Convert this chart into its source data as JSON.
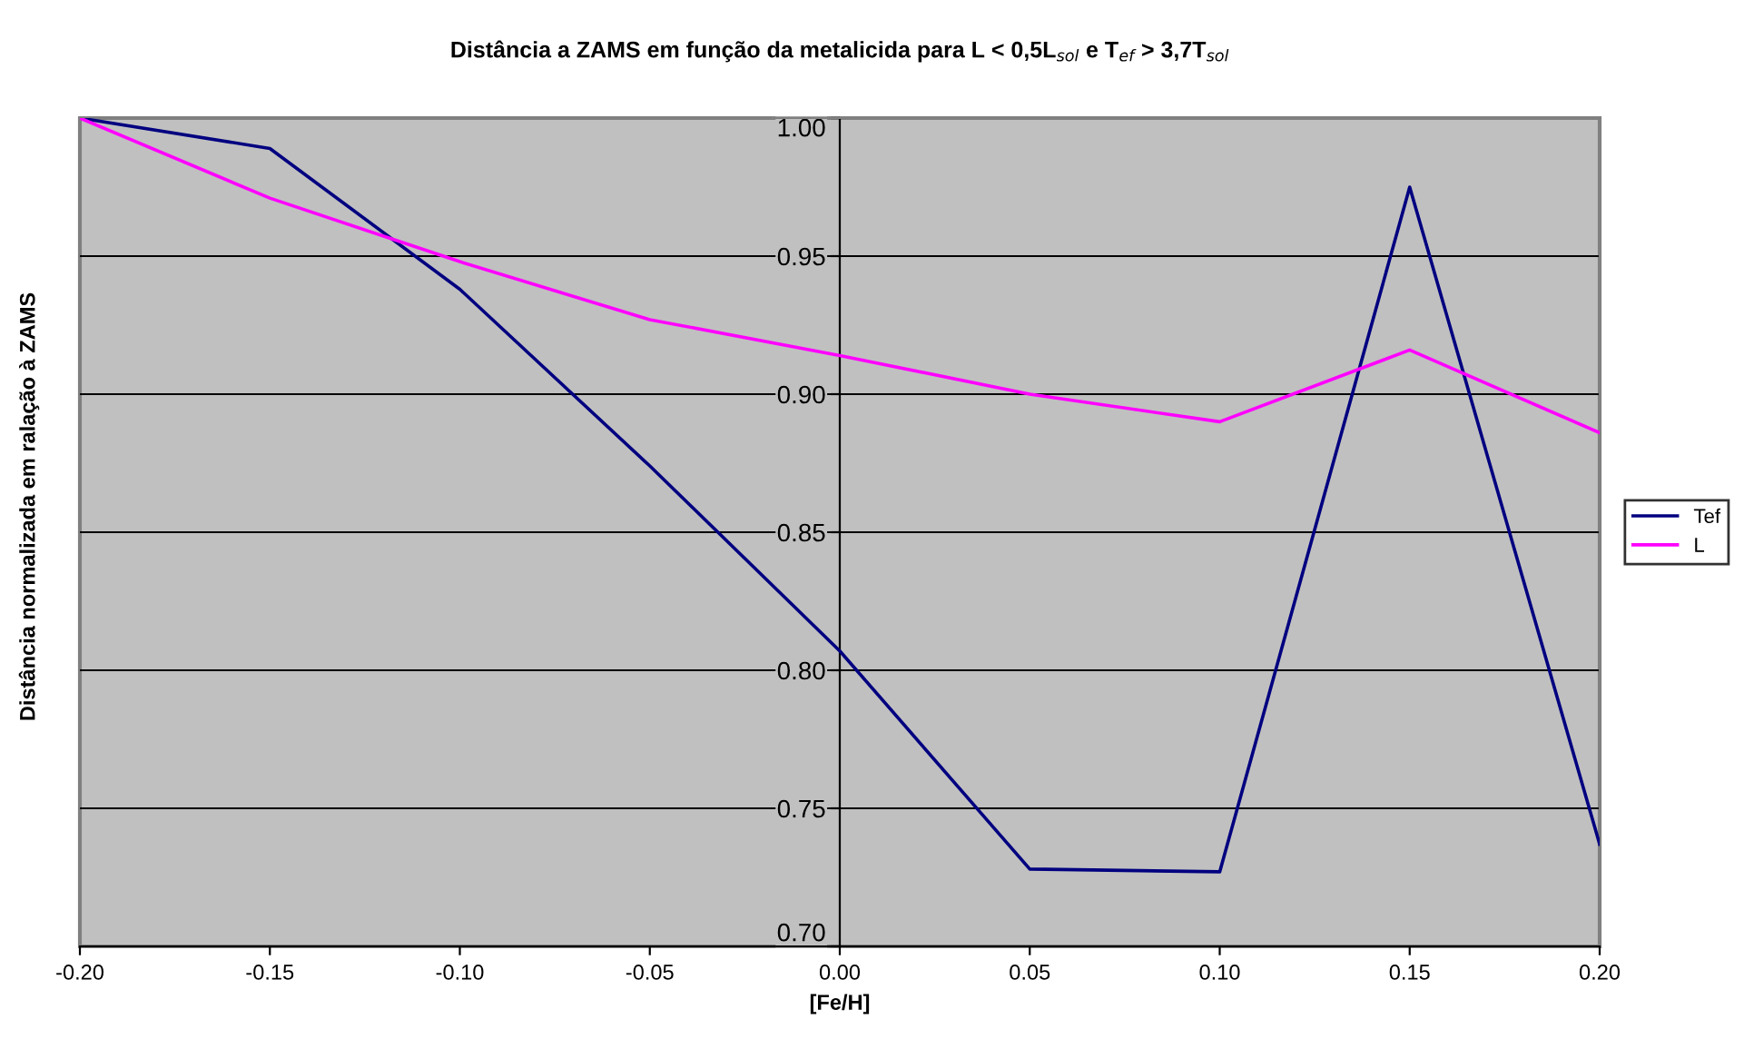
{
  "chart_data": {
    "type": "line",
    "title": "Distância a ZAMS em função da metalicida para L < 0,5L$_{sol}$ e T$_{ef}$ > 3,7T$_{sol}$",
    "xlabel": "[Fe/H]",
    "ylabel": "Distância normalizada em ralação à ZAMS",
    "x": [
      -0.2,
      -0.15,
      -0.1,
      -0.05,
      0.0,
      0.05,
      0.1,
      0.15,
      0.2
    ],
    "series": [
      {
        "name": "Tef",
        "color": "#000080",
        "values": [
          1.0,
          0.989,
          0.938,
          0.874,
          0.807,
          0.728,
          0.727,
          0.975,
          0.737
        ]
      },
      {
        "name": "L",
        "color": "#ff00ff",
        "values": [
          1.0,
          0.971,
          0.948,
          0.927,
          0.914,
          0.9,
          0.89,
          0.916,
          0.886
        ]
      }
    ],
    "xlim": [
      -0.2,
      0.2
    ],
    "ylim": [
      0.7,
      1.0
    ],
    "xticks": [
      {
        "value": -0.2,
        "label": "-0.20"
      },
      {
        "value": -0.15,
        "label": "-0.15"
      },
      {
        "value": -0.1,
        "label": "-0.10"
      },
      {
        "value": -0.05,
        "label": "-0.05"
      },
      {
        "value": 0.0,
        "label": "0.00"
      },
      {
        "value": 0.05,
        "label": "0.05"
      },
      {
        "value": 0.1,
        "label": "0.10"
      },
      {
        "value": 0.15,
        "label": "0.15"
      },
      {
        "value": 0.2,
        "label": "0.20"
      }
    ],
    "yticks": [
      {
        "value": 0.7,
        "label": "0.70"
      },
      {
        "value": 0.75,
        "label": "0.75"
      },
      {
        "value": 0.8,
        "label": "0.80"
      },
      {
        "value": 0.85,
        "label": "0.85"
      },
      {
        "value": 0.9,
        "label": "0.90"
      },
      {
        "value": 0.95,
        "label": "0.95"
      },
      {
        "value": 1.0,
        "label": "1.00"
      }
    ],
    "grid": "y",
    "legend": "right",
    "marker": "none",
    "line_style": "solid"
  }
}
